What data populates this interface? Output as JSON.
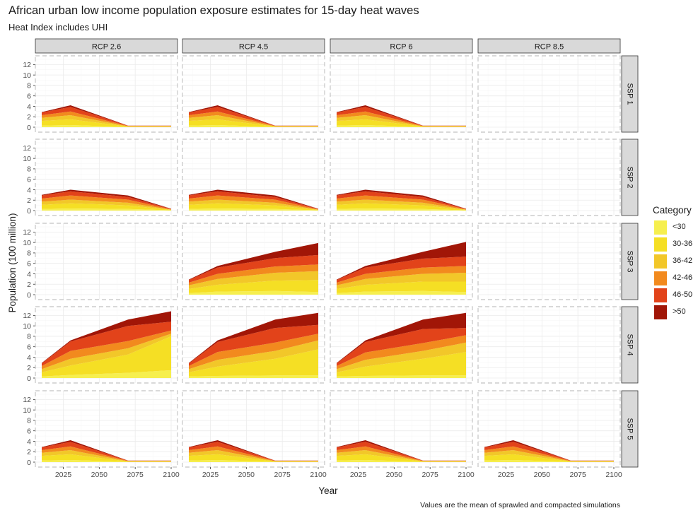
{
  "header": {
    "title": "African urban low income population exposure estimates for 15-day heat waves",
    "subtitle": "Heat Index includes UHI"
  },
  "footer": {
    "caption": "Values are the mean of sprawled and compacted simulations"
  },
  "chart_data": {
    "type": "area",
    "stacked": true,
    "xlabel": "Year",
    "ylabel": "Population (100 million)",
    "ylim": [
      0,
      13
    ],
    "yticks": [
      "0",
      "2",
      "4",
      "6",
      "8",
      "10",
      "12"
    ],
    "xlim": [
      2010,
      2100
    ],
    "xticks": [
      "2025",
      "2050",
      "2075",
      "2100"
    ],
    "x": [
      2010,
      2030,
      2070,
      2100
    ],
    "grid": true,
    "facet_cols": [
      "RCP 2.6",
      "RCP 4.5",
      "RCP 6",
      "RCP 8.5"
    ],
    "facet_rows": [
      "SSP 1",
      "SSP 2",
      "SSP 3",
      "SSP 4",
      "SSP 5"
    ],
    "legend": {
      "title": "Category",
      "position": "right",
      "entries": [
        {
          "label": "<30",
          "color": "#f6ef4e"
        },
        {
          "label": "30-36",
          "color": "#f5df24"
        },
        {
          "label": "36-42",
          "color": "#f2c729"
        },
        {
          "label": "42-46",
          "color": "#f28a1e"
        },
        {
          "label": "46-50",
          "color": "#e2431a"
        },
        {
          "label": ">50",
          "color": "#a11607"
        }
      ]
    },
    "panels": [
      {
        "row": "SSP 1",
        "col": "RCP 2.6",
        "series": [
          {
            "name": "<30",
            "values": [
              0.3,
              0.4,
              0.05,
              0.05
            ]
          },
          {
            "name": "30-36",
            "values": [
              0.9,
              1.1,
              0.08,
              0.08
            ]
          },
          {
            "name": "36-42",
            "values": [
              0.6,
              0.8,
              0.05,
              0.05
            ]
          },
          {
            "name": "42-46",
            "values": [
              0.5,
              0.7,
              0.05,
              0.05
            ]
          },
          {
            "name": "46-50",
            "values": [
              0.5,
              0.9,
              0.05,
              0.05
            ]
          },
          {
            "name": ">50",
            "values": [
              0.1,
              0.3,
              0.02,
              0.02
            ]
          }
        ]
      },
      {
        "row": "SSP 1",
        "col": "RCP 4.5",
        "series": [
          {
            "name": "<30",
            "values": [
              0.3,
              0.4,
              0.05,
              0.05
            ]
          },
          {
            "name": "30-36",
            "values": [
              0.9,
              1.1,
              0.08,
              0.08
            ]
          },
          {
            "name": "36-42",
            "values": [
              0.6,
              0.8,
              0.05,
              0.05
            ]
          },
          {
            "name": "42-46",
            "values": [
              0.5,
              0.7,
              0.05,
              0.05
            ]
          },
          {
            "name": "46-50",
            "values": [
              0.5,
              0.9,
              0.05,
              0.05
            ]
          },
          {
            "name": ">50",
            "values": [
              0.1,
              0.3,
              0.02,
              0.02
            ]
          }
        ]
      },
      {
        "row": "SSP 1",
        "col": "RCP 6",
        "series": [
          {
            "name": "<30",
            "values": [
              0.3,
              0.4,
              0.05,
              0.05
            ]
          },
          {
            "name": "30-36",
            "values": [
              0.9,
              1.1,
              0.08,
              0.08
            ]
          },
          {
            "name": "36-42",
            "values": [
              0.6,
              0.8,
              0.05,
              0.05
            ]
          },
          {
            "name": "42-46",
            "values": [
              0.5,
              0.7,
              0.05,
              0.05
            ]
          },
          {
            "name": "46-50",
            "values": [
              0.5,
              0.9,
              0.05,
              0.05
            ]
          },
          {
            "name": ">50",
            "values": [
              0.1,
              0.3,
              0.02,
              0.02
            ]
          }
        ]
      },
      {
        "row": "SSP 2",
        "col": "RCP 2.6",
        "series": [
          {
            "name": "<30",
            "values": [
              0.3,
              0.4,
              0.3,
              0.05
            ]
          },
          {
            "name": "30-36",
            "values": [
              0.8,
              1.0,
              0.7,
              0.08
            ]
          },
          {
            "name": "36-42",
            "values": [
              0.6,
              0.7,
              0.5,
              0.05
            ]
          },
          {
            "name": "42-46",
            "values": [
              0.6,
              0.8,
              0.6,
              0.07
            ]
          },
          {
            "name": "46-50",
            "values": [
              0.6,
              0.8,
              0.5,
              0.07
            ]
          },
          {
            "name": ">50",
            "values": [
              0.1,
              0.3,
              0.3,
              0.03
            ]
          }
        ]
      },
      {
        "row": "SSP 2",
        "col": "RCP 4.5",
        "series": [
          {
            "name": "<30",
            "values": [
              0.3,
              0.4,
              0.3,
              0.05
            ]
          },
          {
            "name": "30-36",
            "values": [
              0.8,
              1.0,
              0.7,
              0.08
            ]
          },
          {
            "name": "36-42",
            "values": [
              0.6,
              0.7,
              0.5,
              0.05
            ]
          },
          {
            "name": "42-46",
            "values": [
              0.6,
              0.8,
              0.6,
              0.07
            ]
          },
          {
            "name": "46-50",
            "values": [
              0.6,
              0.8,
              0.5,
              0.07
            ]
          },
          {
            "name": ">50",
            "values": [
              0.1,
              0.3,
              0.3,
              0.03
            ]
          }
        ]
      },
      {
        "row": "SSP 2",
        "col": "RCP 6",
        "series": [
          {
            "name": "<30",
            "values": [
              0.3,
              0.4,
              0.3,
              0.05
            ]
          },
          {
            "name": "30-36",
            "values": [
              0.8,
              1.0,
              0.7,
              0.08
            ]
          },
          {
            "name": "36-42",
            "values": [
              0.6,
              0.7,
              0.5,
              0.05
            ]
          },
          {
            "name": "42-46",
            "values": [
              0.6,
              0.8,
              0.6,
              0.07
            ]
          },
          {
            "name": "46-50",
            "values": [
              0.6,
              0.8,
              0.5,
              0.07
            ]
          },
          {
            "name": ">50",
            "values": [
              0.1,
              0.3,
              0.3,
              0.03
            ]
          }
        ]
      },
      {
        "row": "SSP 3",
        "col": "RCP 4.5",
        "series": [
          {
            "name": "<30",
            "values": [
              0.3,
              0.6,
              0.7,
              0.5
            ]
          },
          {
            "name": "30-36",
            "values": [
              0.8,
              1.3,
              2.0,
              2.3
            ]
          },
          {
            "name": "36-42",
            "values": [
              0.7,
              1.1,
              1.5,
              1.7
            ]
          },
          {
            "name": "42-46",
            "values": [
              0.5,
              1.0,
              1.2,
              1.3
            ]
          },
          {
            "name": "46-50",
            "values": [
              0.5,
              1.2,
              1.6,
              1.8
            ]
          },
          {
            "name": ">50",
            "values": [
              0.1,
              0.3,
              1.2,
              2.3
            ]
          }
        ]
      },
      {
        "row": "SSP 3",
        "col": "RCP 6",
        "series": [
          {
            "name": "<30",
            "values": [
              0.3,
              0.6,
              0.7,
              0.5
            ]
          },
          {
            "name": "30-36",
            "values": [
              0.8,
              1.3,
              1.8,
              2.0
            ]
          },
          {
            "name": "36-42",
            "values": [
              0.7,
              1.1,
              1.5,
              1.7
            ]
          },
          {
            "name": "42-46",
            "values": [
              0.5,
              1.0,
              1.2,
              1.3
            ]
          },
          {
            "name": "46-50",
            "values": [
              0.5,
              1.2,
              1.7,
              1.8
            ]
          },
          {
            "name": ">50",
            "values": [
              0.1,
              0.3,
              1.3,
              2.8
            ]
          }
        ]
      },
      {
        "row": "SSP 4",
        "col": "RCP 2.6",
        "series": [
          {
            "name": "<30",
            "values": [
              0.3,
              0.6,
              1.0,
              1.5
            ]
          },
          {
            "name": "30-36",
            "values": [
              0.8,
              1.8,
              3.5,
              6.5
            ]
          },
          {
            "name": "36-42",
            "values": [
              0.6,
              1.3,
              1.2,
              0.5
            ]
          },
          {
            "name": "42-46",
            "values": [
              0.6,
              1.5,
              1.4,
              0.6
            ]
          },
          {
            "name": "46-50",
            "values": [
              0.5,
              1.8,
              2.9,
              1.7
            ]
          },
          {
            "name": ">50",
            "values": [
              0.1,
              0.2,
              1.2,
              2.0
            ]
          }
        ]
      },
      {
        "row": "SSP 4",
        "col": "RCP 4.5",
        "series": [
          {
            "name": "<30",
            "values": [
              0.3,
              0.4,
              0.5,
              0.5
            ]
          },
          {
            "name": "30-36",
            "values": [
              0.8,
              1.8,
              3.2,
              5.0
            ]
          },
          {
            "name": "36-42",
            "values": [
              0.6,
              1.3,
              1.5,
              1.7
            ]
          },
          {
            "name": "42-46",
            "values": [
              0.6,
              1.5,
              1.6,
              1.3
            ]
          },
          {
            "name": "46-50",
            "values": [
              0.5,
              1.9,
              2.8,
              1.7
            ]
          },
          {
            "name": ">50",
            "values": [
              0.1,
              0.3,
              1.6,
              2.3
            ]
          }
        ]
      },
      {
        "row": "SSP 4",
        "col": "RCP 6",
        "series": [
          {
            "name": "<30",
            "values": [
              0.3,
              0.4,
              0.5,
              0.5
            ]
          },
          {
            "name": "30-36",
            "values": [
              0.8,
              1.8,
              3.2,
              4.5
            ]
          },
          {
            "name": "36-42",
            "values": [
              0.6,
              1.3,
              1.5,
              1.8
            ]
          },
          {
            "name": "42-46",
            "values": [
              0.6,
              1.4,
              1.5,
              1.4
            ]
          },
          {
            "name": "46-50",
            "values": [
              0.5,
              2.0,
              2.7,
              1.4
            ]
          },
          {
            "name": ">50",
            "values": [
              0.1,
              0.3,
              1.8,
              2.9
            ]
          }
        ]
      },
      {
        "row": "SSP 5",
        "col": "RCP 2.6",
        "series": [
          {
            "name": "<30",
            "values": [
              0.3,
              0.4,
              0.05,
              0.05
            ]
          },
          {
            "name": "30-36",
            "values": [
              0.9,
              1.1,
              0.08,
              0.08
            ]
          },
          {
            "name": "36-42",
            "values": [
              0.6,
              0.8,
              0.05,
              0.05
            ]
          },
          {
            "name": "42-46",
            "values": [
              0.5,
              0.7,
              0.05,
              0.05
            ]
          },
          {
            "name": "46-50",
            "values": [
              0.5,
              0.9,
              0.05,
              0.05
            ]
          },
          {
            "name": ">50",
            "values": [
              0.1,
              0.3,
              0.02,
              0.02
            ]
          }
        ]
      },
      {
        "row": "SSP 5",
        "col": "RCP 4.5",
        "series": [
          {
            "name": "<30",
            "values": [
              0.3,
              0.4,
              0.05,
              0.05
            ]
          },
          {
            "name": "30-36",
            "values": [
              0.9,
              1.1,
              0.08,
              0.08
            ]
          },
          {
            "name": "36-42",
            "values": [
              0.6,
              0.8,
              0.05,
              0.05
            ]
          },
          {
            "name": "42-46",
            "values": [
              0.5,
              0.7,
              0.05,
              0.05
            ]
          },
          {
            "name": "46-50",
            "values": [
              0.5,
              0.9,
              0.05,
              0.05
            ]
          },
          {
            "name": ">50",
            "values": [
              0.1,
              0.3,
              0.02,
              0.02
            ]
          }
        ]
      },
      {
        "row": "SSP 5",
        "col": "RCP 6",
        "series": [
          {
            "name": "<30",
            "values": [
              0.3,
              0.4,
              0.05,
              0.05
            ]
          },
          {
            "name": "30-36",
            "values": [
              0.9,
              1.1,
              0.08,
              0.08
            ]
          },
          {
            "name": "36-42",
            "values": [
              0.6,
              0.8,
              0.05,
              0.05
            ]
          },
          {
            "name": "42-46",
            "values": [
              0.5,
              0.7,
              0.05,
              0.05
            ]
          },
          {
            "name": "46-50",
            "values": [
              0.5,
              0.9,
              0.05,
              0.05
            ]
          },
          {
            "name": ">50",
            "values": [
              0.1,
              0.3,
              0.02,
              0.02
            ]
          }
        ]
      },
      {
        "row": "SSP 5",
        "col": "RCP 8.5",
        "series": [
          {
            "name": "<30",
            "values": [
              0.3,
              0.4,
              0.05,
              0.05
            ]
          },
          {
            "name": "30-36",
            "values": [
              0.9,
              1.1,
              0.08,
              0.08
            ]
          },
          {
            "name": "36-42",
            "values": [
              0.6,
              0.8,
              0.05,
              0.05
            ]
          },
          {
            "name": "42-46",
            "values": [
              0.5,
              0.7,
              0.05,
              0.05
            ]
          },
          {
            "name": "46-50",
            "values": [
              0.5,
              0.9,
              0.05,
              0.05
            ]
          },
          {
            "name": ">50",
            "values": [
              0.1,
              0.3,
              0.02,
              0.02
            ]
          }
        ]
      }
    ]
  }
}
